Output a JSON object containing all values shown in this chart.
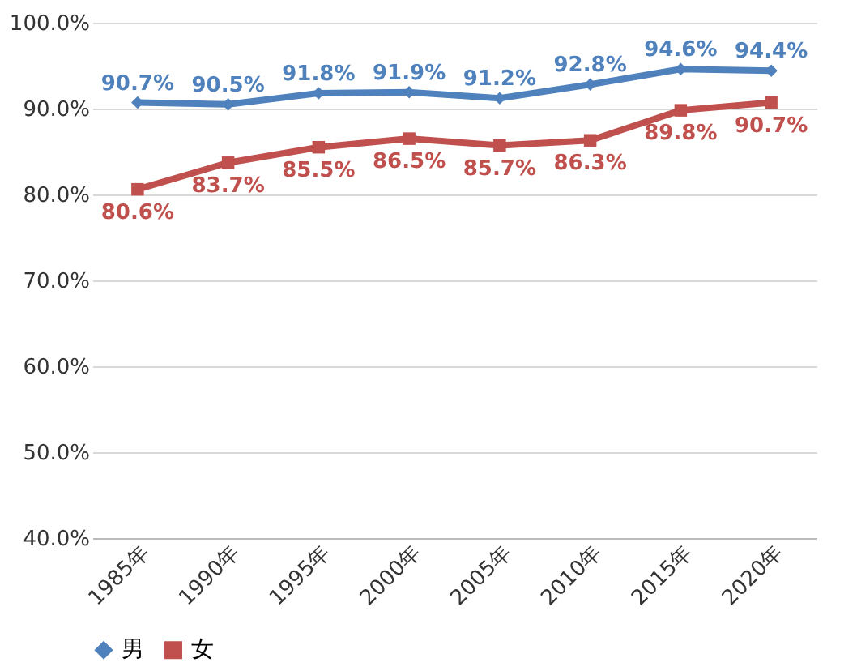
{
  "chart_data": {
    "type": "line",
    "categories": [
      "1985年",
      "1990年",
      "1995年",
      "2000年",
      "2005年",
      "2010年",
      "2015年",
      "2020年"
    ],
    "series": [
      {
        "name": "男",
        "color": "#4f81bd",
        "marker": "diamond",
        "values": [
          90.7,
          90.5,
          91.8,
          91.9,
          91.2,
          92.8,
          94.6,
          94.4
        ],
        "value_labels": [
          "90.7%",
          "90.5%",
          "91.8%",
          "91.9%",
          "91.2%",
          "92.8%",
          "94.6%",
          "94.4%"
        ]
      },
      {
        "name": "女",
        "color": "#c0504d",
        "marker": "square",
        "values": [
          80.6,
          83.7,
          85.5,
          86.5,
          85.7,
          86.3,
          89.8,
          90.7
        ],
        "value_labels": [
          "80.6%",
          "83.7%",
          "85.5%",
          "86.5%",
          "85.7%",
          "86.3%",
          "89.8%",
          "90.7%"
        ]
      }
    ],
    "ylim": [
      40,
      100
    ],
    "yticks": [
      {
        "value": 40,
        "label": "40.0%"
      },
      {
        "value": 50,
        "label": "50.0%"
      },
      {
        "value": 60,
        "label": "60.0%"
      },
      {
        "value": 70,
        "label": "70.0%"
      },
      {
        "value": 80,
        "label": "80.0%"
      },
      {
        "value": 90,
        "label": "90.0%"
      },
      {
        "value": 100,
        "label": "100.0%"
      }
    ],
    "grid": "y",
    "legend": "bottom",
    "line_style": "solid"
  }
}
